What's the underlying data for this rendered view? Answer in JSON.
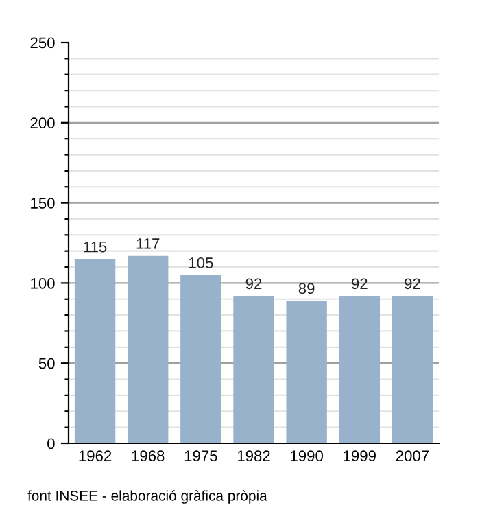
{
  "chart_data": {
    "type": "bar",
    "categories": [
      "1962",
      "1968",
      "1975",
      "1982",
      "1990",
      "1999",
      "2007"
    ],
    "values": [
      115,
      117,
      105,
      92,
      89,
      92,
      92
    ],
    "color": "#98b2cb",
    "data_labels": true,
    "ylim": [
      0,
      250
    ],
    "yticks": [
      0,
      {
        "value": 10,
        "label": null
      },
      {
        "value": 20,
        "label": null
      },
      {
        "value": 30,
        "label": null
      },
      {
        "value": 40,
        "label": null
      },
      50,
      {
        "value": 60,
        "label": null
      },
      {
        "value": 70,
        "label": null
      },
      {
        "value": 80,
        "label": null
      },
      {
        "value": 90,
        "label": null
      },
      100,
      {
        "value": 110,
        "label": null
      },
      {
        "value": 120,
        "label": null
      },
      {
        "value": 130,
        "label": null
      },
      {
        "value": 140,
        "label": null
      },
      150,
      {
        "value": 160,
        "label": null
      },
      {
        "value": 170,
        "label": null
      },
      {
        "value": 180,
        "label": null
      },
      {
        "value": 190,
        "label": null
      },
      200,
      {
        "value": 210,
        "label": null
      },
      {
        "value": 220,
        "label": null
      },
      {
        "value": 230,
        "label": null
      },
      {
        "value": 240,
        "label": null
      },
      250
    ],
    "grid": "y",
    "annotations": [
      "font INSEE - elaboració gràfica pròpia"
    ]
  }
}
